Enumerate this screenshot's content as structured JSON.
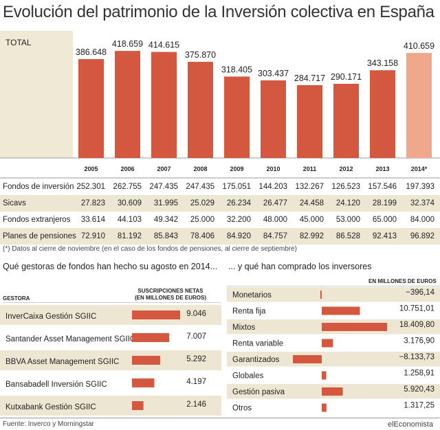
{
  "title": "Evolución del patrimonio de la Inversión colectiva en España",
  "total_label": "TOTAL",
  "chart_data": [
    {
      "type": "bar",
      "categories": [
        "2005",
        "2006",
        "2007",
        "2008",
        "2009",
        "2010",
        "2011",
        "2012",
        "2013",
        "2014*"
      ],
      "values": [
        386.648,
        418.659,
        414.615,
        375.87,
        318.405,
        303.437,
        284.717,
        290.171,
        343.158,
        410.659
      ],
      "value_labels": [
        "386.648",
        "418.659",
        "414.615",
        "375.870",
        "318.405",
        "303.437",
        "284.717",
        "290.171",
        "343.158",
        "410.659"
      ],
      "ylim": [
        0,
        470
      ],
      "colors": {
        "bar": "#d4573f",
        "bar_highlight": "#f0a88c",
        "background": "#efe9d6"
      }
    },
    {
      "type": "table",
      "columns": [
        "2005",
        "2006",
        "2007",
        "2008",
        "2009",
        "2010",
        "2011",
        "2012",
        "2013",
        "2014*"
      ],
      "rows": [
        {
          "label": "Fondos de inversión",
          "values": [
            "252.301",
            "262.755",
            "247.435",
            "247.435",
            "175.051",
            "144.203",
            "132.267",
            "126.523",
            "157.546",
            "197.393"
          ]
        },
        {
          "label": "Sicavs",
          "values": [
            "27.823",
            "30.609",
            "31.995",
            "25.029",
            "26.234",
            "26.477",
            "24.458",
            "24.120",
            "28.199",
            "32.374"
          ]
        },
        {
          "label": "Fondos extranjeros",
          "values": [
            "33.614",
            "44.103",
            "49.342",
            "25.000",
            "32.200",
            "48.000",
            "45.000",
            "53.000",
            "65.000",
            "84.000"
          ]
        },
        {
          "label": "Planes de pensiones",
          "values": [
            "72.910",
            "81.192",
            "85.843",
            "78.406",
            "84.920",
            "84.757",
            "82.992",
            "86.528",
            "92.413",
            "96.892"
          ]
        }
      ]
    },
    {
      "type": "bar",
      "title": "Qué gestoras de fondos han hecho su agosto en 2014...",
      "categories": [
        "InverCaixa Gestión SGIIC",
        "Santander Asset Management SGIIC",
        "BBVA Asset Management SGIIC",
        "Bansabadell Inversión SGIIC",
        "Kutxabank Gestión SGIIC"
      ],
      "values": [
        9.046,
        7.007,
        5.292,
        4.197,
        2.146
      ],
      "value_labels": [
        "9.046",
        "7.007",
        "5.292",
        "4.197",
        "2.146"
      ],
      "category_header": "GESTORA",
      "value_header_line1": "SUSCRIPCIONES NETAS",
      "value_header_line2": "(EN MILLONES DE EUROS)"
    },
    {
      "type": "bar",
      "title": "... y qué han comprado los inversores",
      "value_header": "EN MILLONES DE EUROS",
      "categories": [
        "Monetarios",
        "Renta fija",
        "Mixtos",
        "Renta variable",
        "Garantizados",
        "Globales",
        "Gestión pasiva",
        "Otros"
      ],
      "values": [
        -396.14,
        10751.01,
        18409.8,
        3176.9,
        -8133.73,
        1258.91,
        5920.43,
        1317.25
      ],
      "value_labels": [
        "−396,14",
        "10.751,01",
        "18.409,80",
        "3.176,90",
        "−8.133,73",
        "1.258,91",
        "5.920,43",
        "1.317,25"
      ]
    }
  ],
  "footnote": "(*) Datos al cierre de noviembre (en el caso de los fondos de pensiones, al cierre de septiembre)",
  "source": "Fuente: Inverco y Morningstar",
  "brand": "elEconomista"
}
